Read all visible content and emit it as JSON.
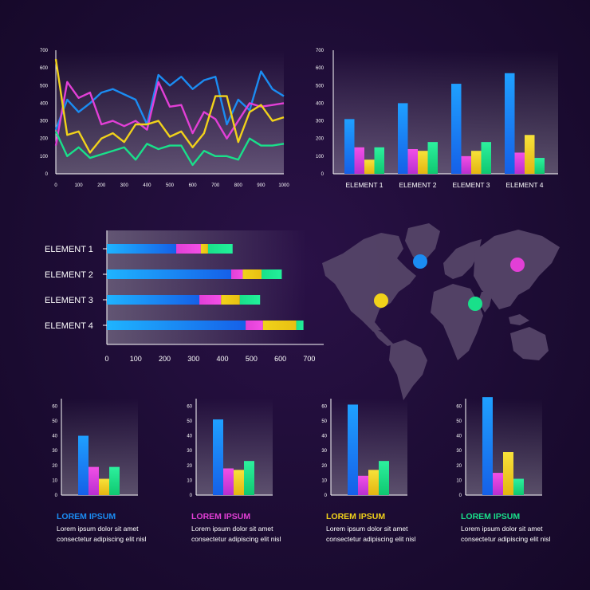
{
  "colors": {
    "blue": "#1b8cf2",
    "pink": "#e23fd6",
    "yellow": "#f1d21a",
    "green": "#19e08a"
  },
  "chart_data": [
    {
      "type": "line",
      "x": [
        0,
        50,
        100,
        150,
        200,
        250,
        300,
        350,
        400,
        450,
        500,
        550,
        600,
        650,
        700,
        750,
        800,
        850,
        900,
        950,
        1000
      ],
      "xticks": [
        0,
        100,
        200,
        300,
        400,
        500,
        600,
        700,
        800,
        900,
        1000
      ],
      "yticks": [
        0,
        100,
        200,
        300,
        400,
        500,
        600,
        700
      ],
      "xlim": [
        0,
        1000
      ],
      "ylim": [
        0,
        700
      ],
      "series": [
        {
          "color": "blue",
          "values": [
            250,
            420,
            350,
            400,
            460,
            480,
            450,
            420,
            280,
            560,
            500,
            550,
            480,
            530,
            550,
            280,
            420,
            360,
            580,
            480,
            440
          ]
        },
        {
          "color": "pink",
          "values": [
            160,
            520,
            430,
            460,
            280,
            300,
            270,
            300,
            250,
            520,
            380,
            390,
            230,
            350,
            310,
            200,
            300,
            400,
            380,
            390,
            400
          ]
        },
        {
          "color": "yellow",
          "values": [
            650,
            220,
            240,
            120,
            200,
            230,
            180,
            280,
            280,
            300,
            210,
            240,
            150,
            230,
            440,
            440,
            180,
            350,
            390,
            300,
            320
          ]
        },
        {
          "color": "green",
          "values": [
            240,
            100,
            150,
            90,
            110,
            130,
            150,
            80,
            170,
            140,
            160,
            160,
            50,
            130,
            100,
            100,
            80,
            200,
            160,
            160,
            170
          ]
        }
      ]
    },
    {
      "type": "bar",
      "categories": [
        "ELEMENT 1",
        "ELEMENT 2",
        "ELEMENT 3",
        "ELEMENT 4"
      ],
      "yticks": [
        0,
        100,
        200,
        300,
        400,
        500,
        600,
        700
      ],
      "ylim": [
        0,
        700
      ],
      "series": [
        {
          "color": "blue",
          "values": [
            310,
            400,
            510,
            570
          ]
        },
        {
          "color": "pink",
          "values": [
            150,
            140,
            100,
            120
          ]
        },
        {
          "color": "yellow",
          "values": [
            80,
            130,
            130,
            220
          ]
        },
        {
          "color": "green",
          "values": [
            150,
            180,
            180,
            90
          ]
        }
      ]
    },
    {
      "type": "bar",
      "orientation": "horizontal",
      "stacked": true,
      "categories": [
        "ELEMENT 1",
        "ELEMENT 2",
        "ELEMENT 3",
        "ELEMENT 4"
      ],
      "xticks": [
        0,
        100,
        200,
        300,
        400,
        500,
        600,
        700
      ],
      "xlim": [
        0,
        750
      ],
      "series": [
        {
          "color": "blue",
          "values": [
            240,
            430,
            320,
            480
          ]
        },
        {
          "color": "pink",
          "values": [
            85,
            40,
            75,
            60
          ]
        },
        {
          "color": "yellow",
          "values": [
            25,
            65,
            65,
            115
          ]
        },
        {
          "color": "green",
          "values": [
            85,
            70,
            70,
            25
          ]
        }
      ]
    },
    {
      "type": "bar",
      "yticks": [
        0,
        10,
        20,
        30,
        40,
        50,
        60
      ],
      "ylim": [
        0,
        65
      ],
      "series": [
        {
          "colors": [
            "blue",
            "pink",
            "yellow",
            "green"
          ],
          "values": [
            40,
            19,
            11,
            19
          ]
        }
      ]
    },
    {
      "type": "bar",
      "yticks": [
        0,
        10,
        20,
        30,
        40,
        50,
        60
      ],
      "ylim": [
        0,
        65
      ],
      "series": [
        {
          "colors": [
            "blue",
            "pink",
            "yellow",
            "green"
          ],
          "values": [
            51,
            18,
            17,
            23
          ]
        }
      ]
    },
    {
      "type": "bar",
      "yticks": [
        0,
        10,
        20,
        30,
        40,
        50,
        60
      ],
      "ylim": [
        0,
        65
      ],
      "series": [
        {
          "colors": [
            "blue",
            "pink",
            "yellow",
            "green"
          ],
          "values": [
            61,
            13,
            17,
            23
          ]
        }
      ]
    },
    {
      "type": "bar",
      "yticks": [
        0,
        10,
        20,
        30,
        40,
        50,
        60
      ],
      "ylim": [
        0,
        65
      ],
      "series": [
        {
          "colors": [
            "blue",
            "pink",
            "yellow",
            "green"
          ],
          "values": [
            66,
            15,
            29,
            11
          ]
        }
      ]
    }
  ],
  "map": {
    "markers": [
      {
        "color": "blue"
      },
      {
        "color": "pink"
      },
      {
        "color": "yellow"
      },
      {
        "color": "green"
      }
    ]
  },
  "captions": [
    {
      "title": "LOREM IPSUM",
      "color": "blue",
      "line1": "Lorem ipsum dolor sit amet",
      "line2": "consectetur adipiscing elit nisl"
    },
    {
      "title": "LOREM IPSUM",
      "color": "pink",
      "line1": "Lorem ipsum dolor sit amet",
      "line2": "consectetur adipiscing elit nisl"
    },
    {
      "title": "LOREM IPSUM",
      "color": "yellow",
      "line1": "Lorem ipsum dolor sit amet",
      "line2": "consectetur adipiscing elit nisl"
    },
    {
      "title": "LOREM IPSUM",
      "color": "green",
      "line1": "Lorem ipsum dolor sit amet",
      "line2": "consectetur adipiscing elit nisl"
    }
  ]
}
